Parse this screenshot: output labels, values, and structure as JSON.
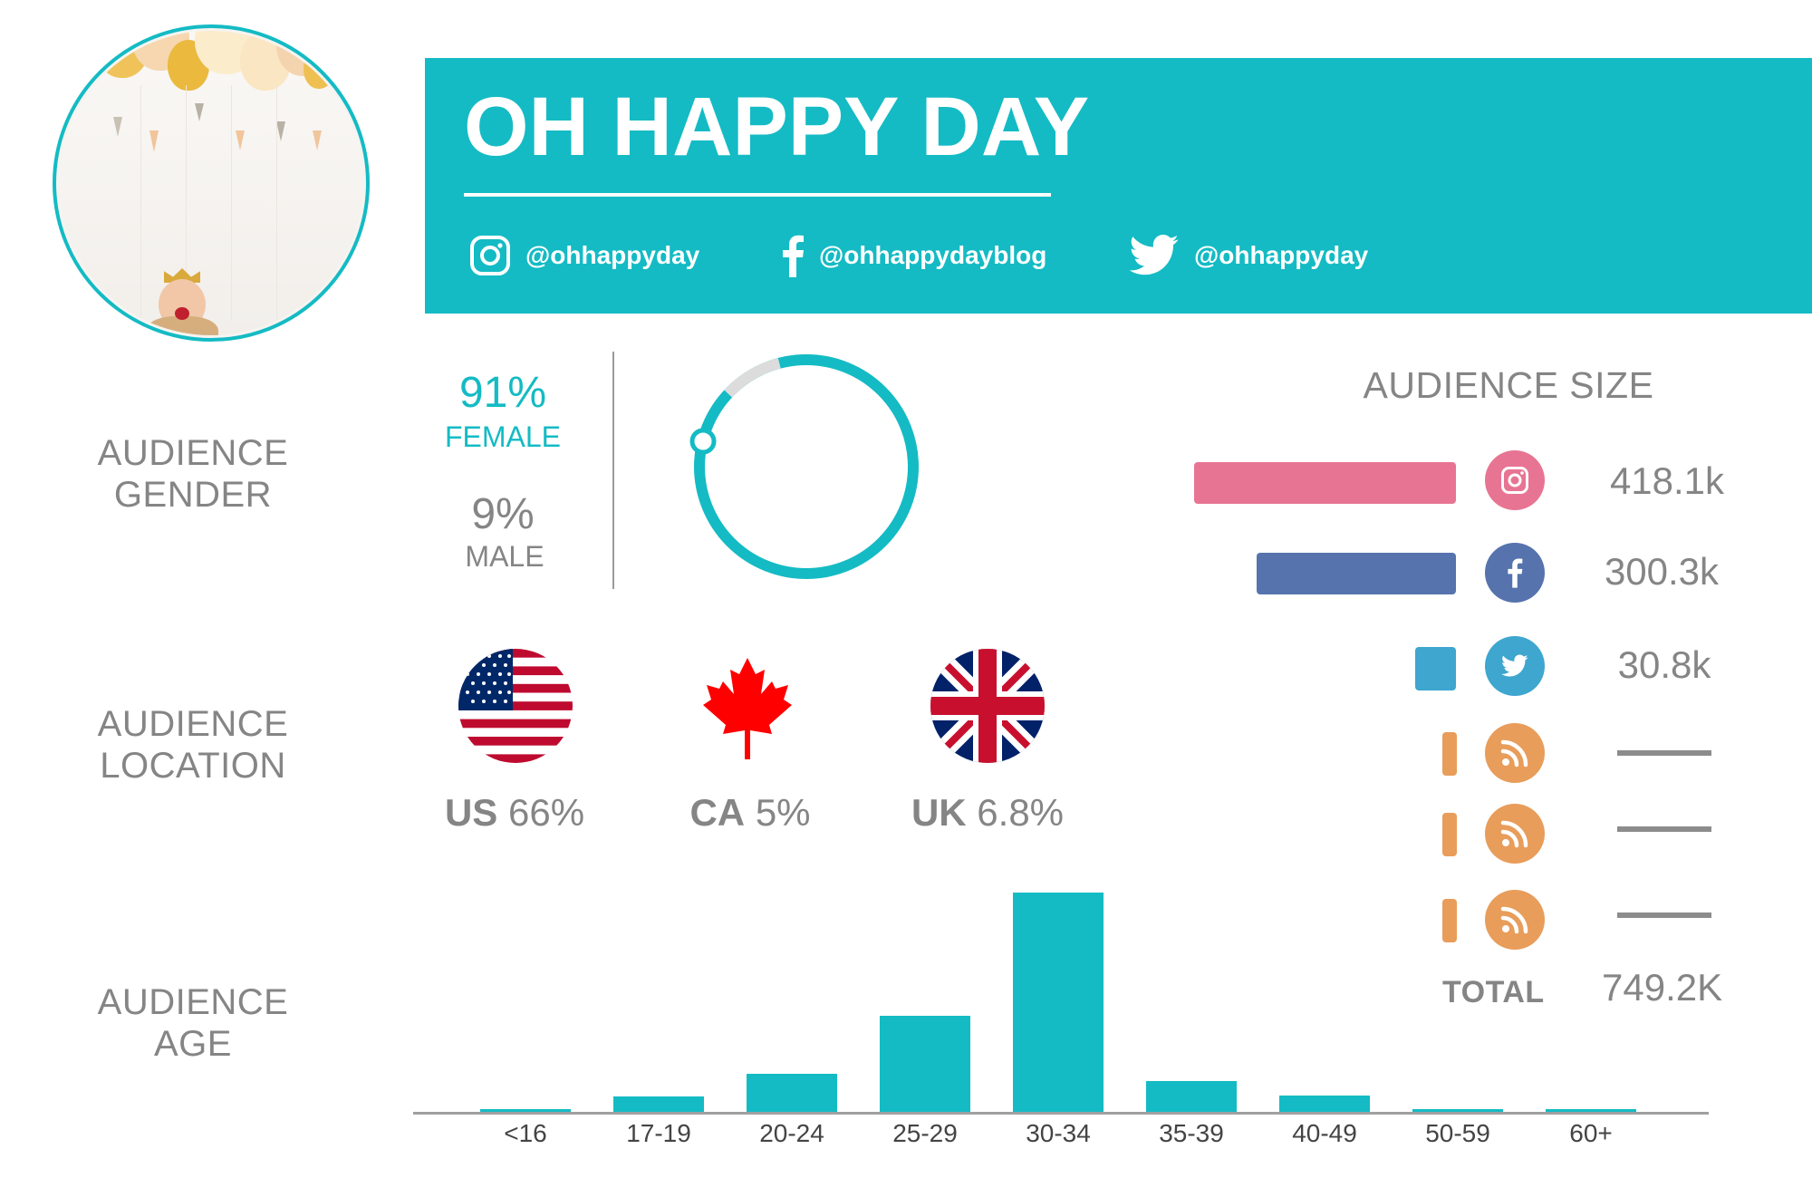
{
  "header": {
    "title": "OH HAPPY DAY",
    "socials": [
      {
        "icon": "instagram-icon",
        "handle": "@ohhappyday"
      },
      {
        "icon": "facebook-icon",
        "handle": "@ohhappydayblog"
      },
      {
        "icon": "twitter-icon",
        "handle": "@ohhappyday"
      }
    ]
  },
  "colors": {
    "accent": "#14bbc4",
    "text_gray": "#858585",
    "instagram": "#e87493",
    "facebook": "#5673ad",
    "twitter": "#3ea6cf",
    "rss": "#e89d5a",
    "ring_remainder": "#dcdcdc"
  },
  "sections": {
    "gender": {
      "line1": "AUDIENCE",
      "line2": "GENDER"
    },
    "location": {
      "line1": "AUDIENCE",
      "line2": "LOCATION"
    },
    "age": {
      "line1": "AUDIENCE",
      "line2": "AGE"
    }
  },
  "gender": {
    "female_pct": "91%",
    "female_label": "FEMALE",
    "male_pct": "9%",
    "male_label": "MALE"
  },
  "location": [
    {
      "code": "US",
      "pct": "66%",
      "flag": "us-flag-icon"
    },
    {
      "code": "CA",
      "pct": "5%",
      "flag": "canada-flag-icon"
    },
    {
      "code": "UK",
      "pct": "6.8%",
      "flag": "uk-flag-icon"
    }
  ],
  "audience_size": {
    "title": "AUDIENCE SIZE",
    "rows": [
      {
        "platform": "instagram",
        "icon": "instagram-icon",
        "value": "418.1k"
      },
      {
        "platform": "facebook",
        "icon": "facebook-icon",
        "value": "300.3k"
      },
      {
        "platform": "twitter",
        "icon": "twitter-icon",
        "value": "30.8k"
      },
      {
        "platform": "rss",
        "icon": "rss-icon",
        "value": "—"
      },
      {
        "platform": "rss",
        "icon": "rss-icon",
        "value": "—"
      },
      {
        "platform": "rss",
        "icon": "rss-icon",
        "value": "—"
      }
    ],
    "total_label": "TOTAL",
    "total_value": "749.2K"
  },
  "chart_data": [
    {
      "type": "pie",
      "title": "Audience Gender",
      "categories": [
        "Female",
        "Male"
      ],
      "values": [
        91,
        9
      ]
    },
    {
      "type": "bar",
      "title": "Audience Size",
      "orientation": "horizontal",
      "categories": [
        "Instagram",
        "Facebook",
        "Twitter",
        "RSS",
        "RSS",
        "RSS"
      ],
      "values": [
        418.1,
        300.3,
        30.8,
        null,
        null,
        null
      ],
      "unit": "k",
      "total": 749.2
    },
    {
      "type": "bar",
      "title": "Audience Age",
      "xlabel": "",
      "ylabel": "",
      "categories": [
        "<16",
        "17-19",
        "20-24",
        "25-29",
        "30-34",
        "35-39",
        "40-49",
        "50-59",
        "60+"
      ],
      "values": [
        0.3,
        2.7,
        6.5,
        16.5,
        37.5,
        5.2,
        2.8,
        0.3,
        0.3
      ],
      "unit": "% (estimated relative heights)",
      "ylim": [
        0,
        37.5
      ],
      "grid": false
    }
  ]
}
